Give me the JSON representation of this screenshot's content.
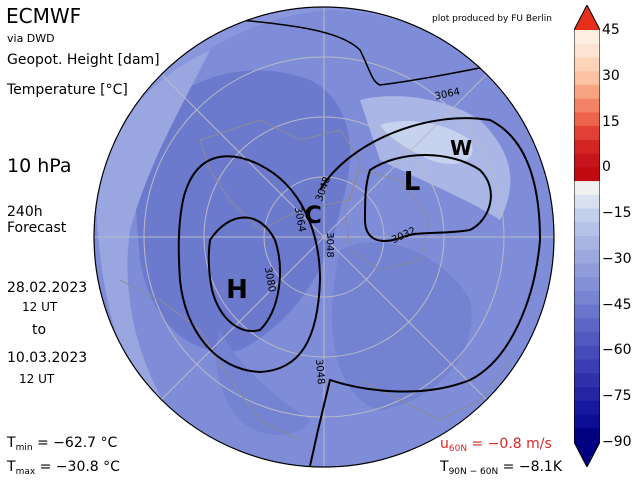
{
  "header": {
    "title": "ECMWF",
    "source": "via DWD",
    "geopotential_label": "Geopot. Height [dam]",
    "temperature_label": "Temperature [°C]",
    "credit": "plot produced by FU Berlin"
  },
  "forecast": {
    "level": "10 hPa",
    "hours": "240h",
    "type": "Forecast",
    "start_date": "28.02.2023",
    "start_time": "12 UT",
    "to": "to",
    "end_date": "10.03.2023",
    "end_time": "12 UT"
  },
  "stats": {
    "tmin_symbol": "T",
    "tmin_sub": "min",
    "tmin_value": "= −62.7 °C",
    "tmax_symbol": "T",
    "tmax_sub": "max",
    "tmax_value": "= −30.8 °C",
    "u_symbol": "u",
    "u_sub": "60N",
    "u_value": "= −0.8 m/s",
    "t_symbol": "T",
    "t_sub": "90N − 60N",
    "t_value": "= −8.1K"
  },
  "map": {
    "markers": {
      "high": "H",
      "low": "L",
      "cold": "C",
      "warm": "W"
    },
    "contour_labels": [
      "3064",
      "3048",
      "3064",
      "3080",
      "3048",
      "3048",
      "3032"
    ]
  },
  "colorbar": {
    "ticks": [
      "45",
      "30",
      "15",
      "0",
      "−15",
      "−30",
      "−45",
      "−60",
      "−75",
      "−90"
    ],
    "colors": [
      "#fdeee2",
      "#fde4d2",
      "#fdd3b9",
      "#fcc2a1",
      "#f7a581",
      "#f28465",
      "#ed634c",
      "#e23f35",
      "#d32521",
      "#c6151b",
      "#c00a10",
      "#f0f0f0",
      "#d9e1f0",
      "#c3d0ec",
      "#b4c2e8",
      "#a8b5e3",
      "#9ca9df",
      "#909cda",
      "#8390d6",
      "#7684d1",
      "#6a76cb",
      "#5d66c5",
      "#5158bf",
      "#454bb8",
      "#3a3eb2",
      "#2e31aa",
      "#2325a3",
      "#17199c",
      "#0c0e95",
      "#020280"
    ]
  }
}
